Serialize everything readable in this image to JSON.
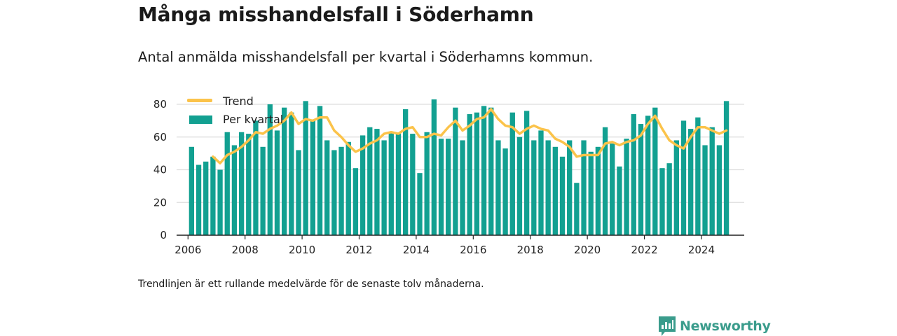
{
  "header": {
    "title": "Många misshandelsfall i Söderhamn",
    "subtitle": "Antal anmälda misshandelsfall per kvartal i Söderhamns kommun."
  },
  "footer": {
    "note": "Trendlinjen är ett rullande medelvärde för de senaste tolv månaderna.",
    "brand": "Newsworthy",
    "brand_color": "#3a9c8c"
  },
  "colors": {
    "bar": "#12a091",
    "trend": "#fbc34a",
    "grid": "#dddddd",
    "axis": "#222222"
  },
  "chart_data": {
    "type": "bar",
    "x_start": "2006 Q1",
    "xticks": [
      2006,
      2008,
      2010,
      2012,
      2014,
      2016,
      2018,
      2020,
      2022,
      2024
    ],
    "yticks": [
      0,
      20,
      40,
      60,
      80
    ],
    "ylim": [
      0,
      86
    ],
    "xlim": [
      2005.6,
      2025.5
    ],
    "grid": true,
    "legend_position": "top-left",
    "series": [
      {
        "name": "Per kvartal",
        "type": "bar",
        "values": [
          54,
          43,
          45,
          48,
          40,
          63,
          55,
          63,
          62,
          70,
          54,
          80,
          64,
          78,
          75,
          52,
          82,
          70,
          79,
          58,
          52,
          54,
          57,
          41,
          61,
          66,
          65,
          58,
          63,
          62,
          77,
          62,
          38,
          63,
          83,
          59,
          59,
          78,
          58,
          74,
          75,
          79,
          78,
          58,
          53,
          75,
          60,
          76,
          58,
          64,
          58,
          54,
          48,
          58,
          32,
          58,
          51,
          54,
          66,
          56,
          42,
          59,
          74,
          68,
          73,
          78,
          41,
          44,
          58,
          70,
          65,
          72,
          55,
          66,
          55,
          82
        ]
      },
      {
        "name": "Trend",
        "type": "line",
        "values": [
          null,
          null,
          null,
          48,
          44,
          49,
          51,
          54,
          58,
          63,
          62,
          65,
          67,
          70,
          75,
          68,
          71,
          70,
          72,
          72,
          64,
          60,
          55,
          51,
          53,
          56,
          58,
          62,
          63,
          62,
          65,
          66,
          60,
          60,
          62,
          61,
          66,
          70,
          64,
          67,
          71,
          72,
          77,
          71,
          67,
          66,
          62,
          65,
          67,
          65,
          64,
          59,
          57,
          54,
          48,
          49,
          49,
          49,
          56,
          57,
          55,
          57,
          58,
          61,
          68,
          73,
          65,
          58,
          55,
          53,
          60,
          66,
          66,
          64,
          62,
          64
        ]
      }
    ]
  }
}
